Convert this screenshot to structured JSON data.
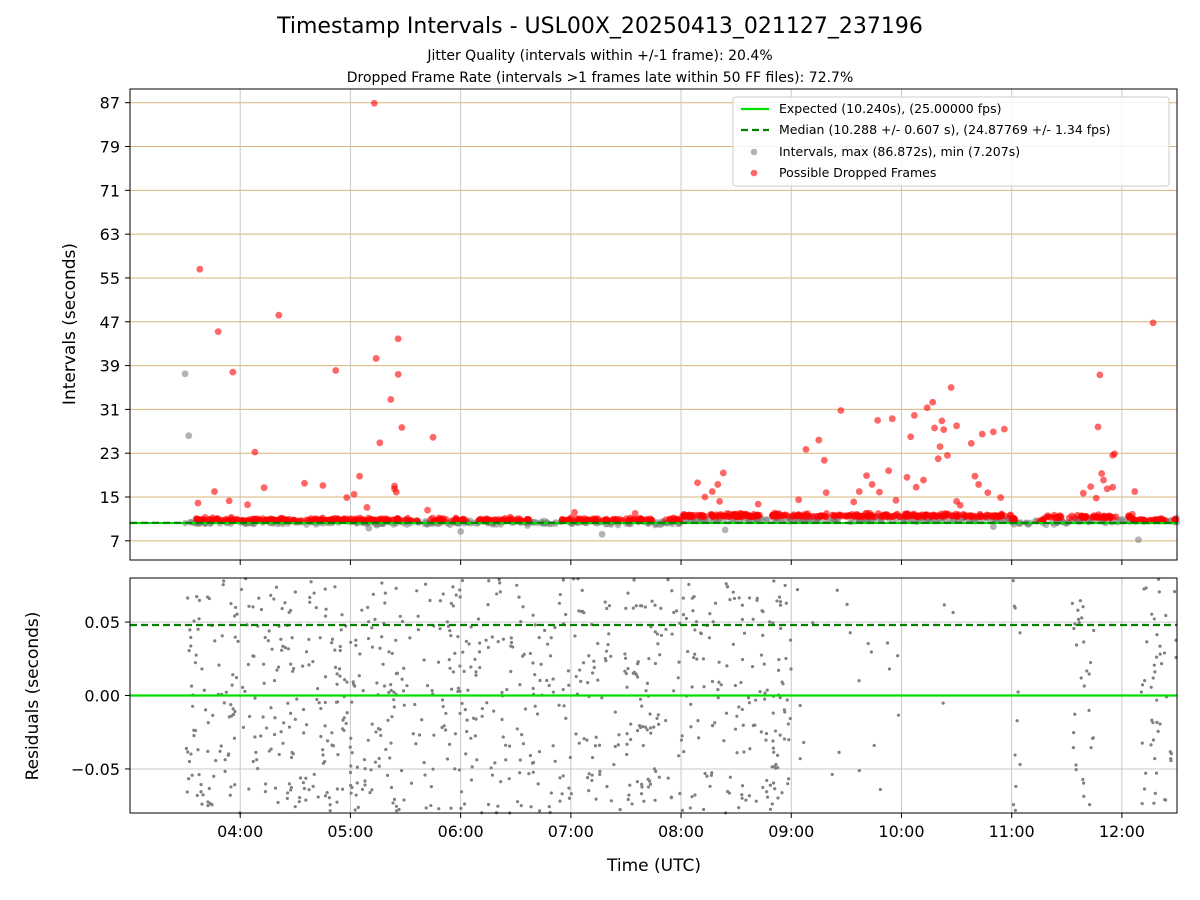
{
  "chart_data": [
    {
      "type": "scatter",
      "title": "Timestamp Intervals - USL00X_20250413_021127_237196",
      "subtitles": [
        "Jitter Quality (intervals within +/-1 frame): 20.4%",
        "Dropped Frame Rate (intervals >1 frames late within 50 FF files): 72.7%"
      ],
      "ylabel": "Intervals (seconds)",
      "xlim": [
        "03:00",
        "12:30"
      ],
      "ylim": [
        3.5,
        89.5
      ],
      "yticks": [
        "7",
        "15",
        "23",
        "31",
        "39",
        "47",
        "55",
        "63",
        "71",
        "79",
        "87"
      ],
      "ytick_values": [
        7,
        15,
        23,
        31,
        39,
        47,
        55,
        63,
        71,
        79,
        87
      ],
      "grid": "horizontal lines at y ticks (tan), vertical lines at x ticks (gray)",
      "legend_position": "upper-right",
      "legend": [
        "Expected (10.240s), (25.00000 fps)",
        "Median (10.288 +/- 0.607 s), (24.87769 +/- 1.34 fps)",
        "Intervals, max (86.872s), min (7.207s)",
        "Possible Dropped Frames"
      ],
      "expected_interval": 10.24,
      "median_interval": 10.288,
      "series": [
        {
          "name": "Intervals, max (86.872s), min (7.207s)",
          "color": "#808080",
          "time_range": [
            "03:30",
            "12:30"
          ],
          "typical_range": [
            9.4,
            11.8
          ],
          "points": [
            {
              "x": "03:30",
              "y": 37.5
            },
            {
              "x": "03:32",
              "y": 26.2
            },
            {
              "x": "06:00",
              "y": 8.7
            },
            {
              "x": "07:17",
              "y": 8.2
            },
            {
              "x": "08:24",
              "y": 9.0
            },
            {
              "x": "12:09",
              "y": 7.2
            },
            {
              "x": "10:50",
              "y": 9.6
            },
            {
              "x": "05:10",
              "y": 9.3
            }
          ]
        },
        {
          "name": "Possible Dropped Frames",
          "color": "#ff0000",
          "time_range": [
            "03:36",
            "12:30"
          ],
          "typical_range": [
            10.0,
            12.5
          ],
          "points": [
            {
              "x": "03:37",
              "y": 13.9
            },
            {
              "x": "03:38",
              "y": 56.6
            },
            {
              "x": "03:46",
              "y": 16.0
            },
            {
              "x": "03:48",
              "y": 45.2
            },
            {
              "x": "03:54",
              "y": 14.3
            },
            {
              "x": "03:56",
              "y": 37.8
            },
            {
              "x": "04:04",
              "y": 13.6
            },
            {
              "x": "04:08",
              "y": 23.2
            },
            {
              "x": "04:13",
              "y": 16.7
            },
            {
              "x": "04:21",
              "y": 48.2
            },
            {
              "x": "04:35",
              "y": 17.5
            },
            {
              "x": "04:45",
              "y": 17.1
            },
            {
              "x": "04:52",
              "y": 38.1
            },
            {
              "x": "04:58",
              "y": 14.9
            },
            {
              "x": "05:02",
              "y": 15.5
            },
            {
              "x": "05:05",
              "y": 18.8
            },
            {
              "x": "05:09",
              "y": 13.1
            },
            {
              "x": "05:13",
              "y": 86.9
            },
            {
              "x": "05:14",
              "y": 40.3
            },
            {
              "x": "05:16",
              "y": 24.9
            },
            {
              "x": "05:22",
              "y": 32.8
            },
            {
              "x": "05:24",
              "y": 16.5
            },
            {
              "x": "05:24",
              "y": 17.0
            },
            {
              "x": "05:25",
              "y": 15.9
            },
            {
              "x": "05:26",
              "y": 43.9
            },
            {
              "x": "05:26",
              "y": 37.4
            },
            {
              "x": "05:28",
              "y": 27.7
            },
            {
              "x": "05:45",
              "y": 25.9
            },
            {
              "x": "05:42",
              "y": 12.6
            },
            {
              "x": "07:02",
              "y": 12.2
            },
            {
              "x": "07:35",
              "y": 12.0
            },
            {
              "x": "08:09",
              "y": 17.6
            },
            {
              "x": "08:13",
              "y": 15.0
            },
            {
              "x": "08:17",
              "y": 16.0
            },
            {
              "x": "08:20",
              "y": 17.3
            },
            {
              "x": "08:23",
              "y": 19.4
            },
            {
              "x": "08:21",
              "y": 14.2
            },
            {
              "x": "08:42",
              "y": 13.7
            },
            {
              "x": "09:04",
              "y": 14.5
            },
            {
              "x": "09:08",
              "y": 23.7
            },
            {
              "x": "09:15",
              "y": 25.4
            },
            {
              "x": "09:18",
              "y": 21.7
            },
            {
              "x": "09:19",
              "y": 15.8
            },
            {
              "x": "09:27",
              "y": 30.8
            },
            {
              "x": "09:34",
              "y": 14.1
            },
            {
              "x": "09:37",
              "y": 16.0
            },
            {
              "x": "09:41",
              "y": 18.9
            },
            {
              "x": "09:44",
              "y": 17.3
            },
            {
              "x": "09:47",
              "y": 29.0
            },
            {
              "x": "09:48",
              "y": 15.9
            },
            {
              "x": "09:53",
              "y": 19.8
            },
            {
              "x": "09:55",
              "y": 29.3
            },
            {
              "x": "09:57",
              "y": 14.4
            },
            {
              "x": "10:03",
              "y": 18.6
            },
            {
              "x": "10:05",
              "y": 26.0
            },
            {
              "x": "10:07",
              "y": 29.9
            },
            {
              "x": "10:08",
              "y": 16.8
            },
            {
              "x": "10:12",
              "y": 18.1
            },
            {
              "x": "10:14",
              "y": 31.3
            },
            {
              "x": "10:17",
              "y": 32.3
            },
            {
              "x": "10:18",
              "y": 27.6
            },
            {
              "x": "10:20",
              "y": 22.0
            },
            {
              "x": "10:21",
              "y": 24.2
            },
            {
              "x": "10:22",
              "y": 28.9
            },
            {
              "x": "10:23",
              "y": 27.3
            },
            {
              "x": "10:25",
              "y": 22.6
            },
            {
              "x": "10:27",
              "y": 35.0
            },
            {
              "x": "10:30",
              "y": 28.0
            },
            {
              "x": "10:30",
              "y": 14.2
            },
            {
              "x": "10:32",
              "y": 13.5
            },
            {
              "x": "10:38",
              "y": 24.8
            },
            {
              "x": "10:40",
              "y": 18.8
            },
            {
              "x": "10:42",
              "y": 17.3
            },
            {
              "x": "10:44",
              "y": 26.5
            },
            {
              "x": "10:47",
              "y": 15.8
            },
            {
              "x": "10:50",
              "y": 26.9
            },
            {
              "x": "10:54",
              "y": 14.9
            },
            {
              "x": "10:56",
              "y": 27.4
            },
            {
              "x": "11:39",
              "y": 15.7
            },
            {
              "x": "11:43",
              "y": 16.9
            },
            {
              "x": "11:46",
              "y": 14.8
            },
            {
              "x": "11:47",
              "y": 27.8
            },
            {
              "x": "11:48",
              "y": 37.3
            },
            {
              "x": "11:49",
              "y": 19.3
            },
            {
              "x": "11:50",
              "y": 18.1
            },
            {
              "x": "11:52",
              "y": 16.5
            },
            {
              "x": "11:55",
              "y": 22.6
            },
            {
              "x": "11:56",
              "y": 22.9
            },
            {
              "x": "11:55",
              "y": 16.8
            },
            {
              "x": "12:07",
              "y": 16.0
            },
            {
              "x": "12:17",
              "y": 46.8
            }
          ]
        }
      ]
    },
    {
      "type": "scatter",
      "ylabel": "Residuals (seconds)",
      "xlabel": "Time (UTC)",
      "xlim": [
        "03:00",
        "12:30"
      ],
      "ylim": [
        -0.08,
        0.08
      ],
      "yticks": [
        "−0.05",
        "0.00",
        "0.05"
      ],
      "ytick_values": [
        -0.05,
        0.0,
        0.05
      ],
      "xticks": [
        "04:00",
        "05:00",
        "06:00",
        "07:00",
        "08:00",
        "09:00",
        "10:00",
        "11:00",
        "12:00"
      ],
      "xtick_values": [
        "04:00",
        "05:00",
        "06:00",
        "07:00",
        "08:00",
        "09:00",
        "10:00",
        "11:00",
        "12:00"
      ],
      "grid": "gray, both axes",
      "expected_line": 0.0,
      "median_line": 0.048,
      "series": [
        {
          "name": "",
          "color": "#808080",
          "value_range": [
            -0.08,
            0.08
          ],
          "dense_time_ranges": [
            [
              "03:30",
              "05:45"
            ],
            [
              "05:45",
              "09:00"
            ],
            [
              "11:00",
              "11:05"
            ],
            [
              "11:33",
              "11:45"
            ],
            [
              "12:10",
              "12:30"
            ]
          ],
          "sparse_time_ranges": [
            [
              "09:00",
              "10:00"
            ],
            [
              "10:20",
              "10:30"
            ]
          ]
        }
      ]
    }
  ],
  "colors": {
    "expected": "#00e000",
    "median": "#008000",
    "intervals": "#808080",
    "dropped": "#ff0000",
    "hgrid_top": "#d8b478",
    "grid": "#c8c8c8"
  }
}
